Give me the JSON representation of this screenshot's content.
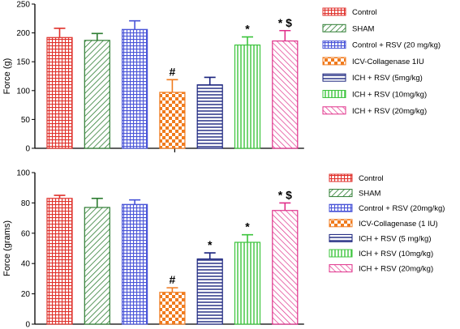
{
  "chart_data": [
    {
      "type": "bar",
      "ylabel": "Force (g)",
      "ylim": [
        0,
        250
      ],
      "yticks": [
        0,
        50,
        100,
        150,
        200,
        250
      ],
      "categories": [
        "Control",
        "SHAM",
        "Control + RSV (20 mg/kg)",
        "ICV-Collagenase 1IU",
        "ICH + RSV (5mg/kg)",
        "ICH + RSV (10mg/kg)",
        "ICH + RSV (20mg/kg)"
      ],
      "values": [
        192,
        187,
        206,
        97,
        110,
        179,
        186
      ],
      "errors": [
        16,
        12,
        15,
        22,
        13,
        14,
        18
      ],
      "annotations": [
        "",
        "",
        "",
        "#",
        "",
        "*",
        "* $"
      ],
      "legend": [
        "Control",
        "SHAM",
        "Control + RSV (20 mg/kg)",
        "ICV-Collagenase 1IU",
        "ICH + RSV (5mg/kg)",
        "ICH + RSV (10mg/kg)",
        "ICH + RSV (20mg/kg)"
      ],
      "legend_position": "right",
      "grid": false
    },
    {
      "type": "bar",
      "ylabel": "Force (grams)",
      "ylim": [
        0,
        100
      ],
      "yticks": [
        0,
        20,
        40,
        60,
        80,
        100
      ],
      "categories": [
        "Control",
        "SHAM",
        "Control + RSV (20mg/kg)",
        "ICV-Collagenase (1 IU)",
        "ICH + RSV (5 mg/kg)",
        "ICH + RSV (10mg/kg)",
        "ICH + RSV (20mg/kg)"
      ],
      "values": [
        83,
        77,
        79,
        21,
        43,
        54,
        75
      ],
      "errors": [
        2,
        6,
        3,
        3,
        4,
        5,
        5
      ],
      "annotations": [
        "",
        "",
        "",
        "#",
        "*",
        "*",
        "* $"
      ],
      "legend": [
        "Control",
        "SHAM",
        "Control + RSV (20mg/kg)",
        "ICV-Collagenase (1 IU)",
        "ICH + RSV (5 mg/kg)",
        "ICH + RSV (10mg/kg)",
        "ICH + RSV (20mg/kg)"
      ],
      "legend_position": "right",
      "grid": false
    }
  ],
  "series_styles": [
    {
      "pattern": "grid",
      "color": "#e0322c"
    },
    {
      "pattern": "diag-down",
      "color": "#2e7d32"
    },
    {
      "pattern": "grid",
      "color": "#4a55d8"
    },
    {
      "pattern": "checker",
      "color": "#f07b1e"
    },
    {
      "pattern": "hlines",
      "color": "#1a237e"
    },
    {
      "pattern": "vlines",
      "color": "#3cc43c"
    },
    {
      "pattern": "diag-up",
      "color": "#e0308a"
    }
  ]
}
